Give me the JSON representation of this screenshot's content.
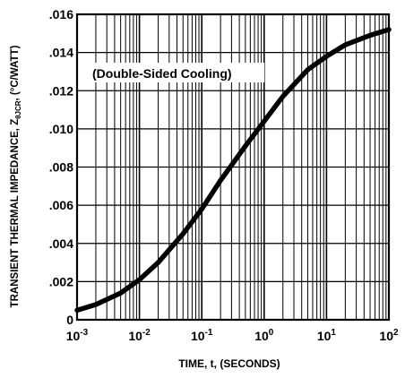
{
  "chart_data": {
    "type": "line",
    "title": "",
    "annotation": "(Double-Sided Cooling)",
    "xlabel": "TIME, t, (SECONDS)",
    "ylabel": "TRANSIENT THERMAL IMPEDANCE, Z",
    "ylabel_subscript": "θJCR",
    "ylabel_unit": ", (°C/WATT)",
    "xscale": "log",
    "xlim": [
      0.001,
      100
    ],
    "ylim": [
      0,
      0.016
    ],
    "grid": true,
    "x_ticks": [
      {
        "value": 0.001,
        "base": "10",
        "exp": "-3"
      },
      {
        "value": 0.01,
        "base": "10",
        "exp": "-2"
      },
      {
        "value": 0.1,
        "base": "10",
        "exp": "-1"
      },
      {
        "value": 1,
        "base": "10",
        "exp": "0"
      },
      {
        "value": 10,
        "base": "10",
        "exp": "1"
      },
      {
        "value": 100,
        "base": "10",
        "exp": "2"
      }
    ],
    "y_ticks": [
      {
        "value": 0,
        "label": "0"
      },
      {
        "value": 0.002,
        "label": ".002"
      },
      {
        "value": 0.004,
        "label": ".004"
      },
      {
        "value": 0.006,
        "label": ".006"
      },
      {
        "value": 0.008,
        "label": ".008"
      },
      {
        "value": 0.01,
        "label": ".010"
      },
      {
        "value": 0.012,
        "label": ".012"
      },
      {
        "value": 0.014,
        "label": ".014"
      },
      {
        "value": 0.016,
        "label": ".016"
      }
    ],
    "series": [
      {
        "color": "#000000",
        "x": [
          0.001,
          0.002,
          0.005,
          0.01,
          0.02,
          0.05,
          0.1,
          0.2,
          0.5,
          1,
          2,
          5,
          10,
          20,
          50,
          100
        ],
        "y": [
          0.0005,
          0.0008,
          0.0014,
          0.0021,
          0.003,
          0.0045,
          0.0058,
          0.0073,
          0.0091,
          0.0104,
          0.0117,
          0.0131,
          0.0138,
          0.0144,
          0.0149,
          0.0152
        ]
      }
    ]
  }
}
